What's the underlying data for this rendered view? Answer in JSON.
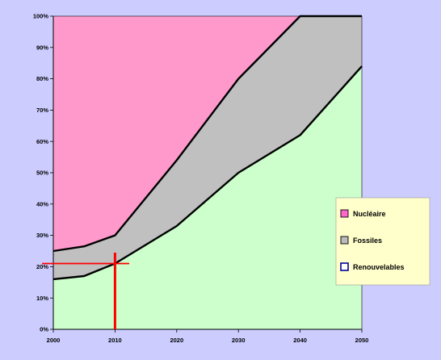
{
  "chart_data": {
    "type": "area",
    "stacked": true,
    "percent": true,
    "x": [
      2000,
      2005,
      2010,
      2020,
      2030,
      2040,
      2050
    ],
    "series": [
      {
        "name": "Renouvelables",
        "values": [
          16,
          17,
          21,
          33,
          50,
          62,
          84
        ]
      },
      {
        "name": "Fossiles",
        "values": [
          9,
          9.5,
          9,
          21,
          30,
          38,
          16
        ]
      },
      {
        "name": "Nucléaire",
        "values": [
          75,
          73.5,
          70,
          46,
          20,
          0,
          0
        ]
      }
    ],
    "xticks": [
      "2000",
      "2010",
      "2020",
      "2030",
      "2040",
      "2050"
    ],
    "yticks": [
      "0%",
      "10%",
      "20%",
      "30%",
      "40%",
      "50%",
      "60%",
      "70%",
      "80%",
      "90%",
      "100%"
    ],
    "xlim": [
      2000,
      2050
    ],
    "ylim": [
      0,
      100
    ],
    "grid": false,
    "legend_position": "right",
    "legend": [
      {
        "label": "Nucléaire",
        "swatch_color": "#ff66cc"
      },
      {
        "label": "Fossiles",
        "swatch_color": "#bbbbbb"
      },
      {
        "label": "Renouvelables",
        "swatch_color": "#ffffff"
      }
    ],
    "colors": {
      "Nucléaire": "#ff99cc",
      "Fossiles": "#c0c0c0",
      "Renouvelables": "#ccffcc",
      "background": "#ccccff",
      "legend_background": "#ffffcc",
      "marker": "#ff0000"
    },
    "annotation": {
      "type": "crosshair",
      "x": 2010,
      "y": 21
    }
  }
}
